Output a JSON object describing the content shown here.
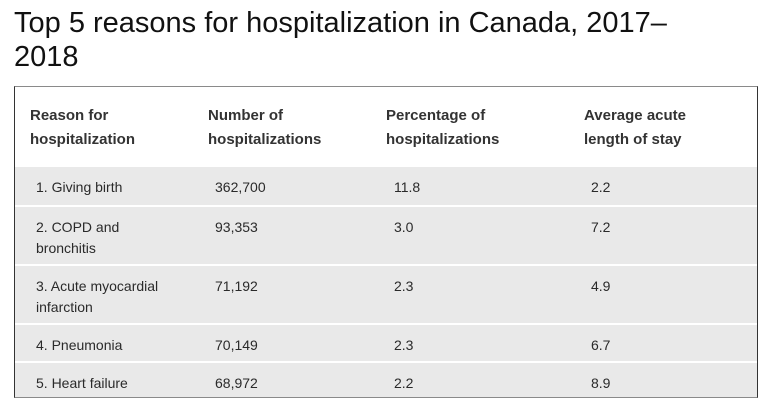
{
  "title": "Top 5 reasons for hospitalization in Canada, 2017–\n2018",
  "table": {
    "headers": [
      "Reason for\nhospitalization",
      "Number of\nhospitalizations",
      "Percentage of\nhospitalizations",
      "Average acute\nlength of stay"
    ],
    "rows": [
      [
        "1. Giving birth",
        "362,700",
        "11.8",
        "2.2"
      ],
      [
        "2. COPD and\nbronchitis",
        "93,353",
        "3.0",
        "7.2"
      ],
      [
        "3. Acute myocardial\ninfarction",
        "71,192",
        "2.3",
        "4.9"
      ],
      [
        "4. Pneumonia",
        "70,149",
        "2.3",
        "6.7"
      ],
      [
        "5. Heart failure",
        "68,972",
        "2.2",
        "8.9"
      ]
    ]
  }
}
